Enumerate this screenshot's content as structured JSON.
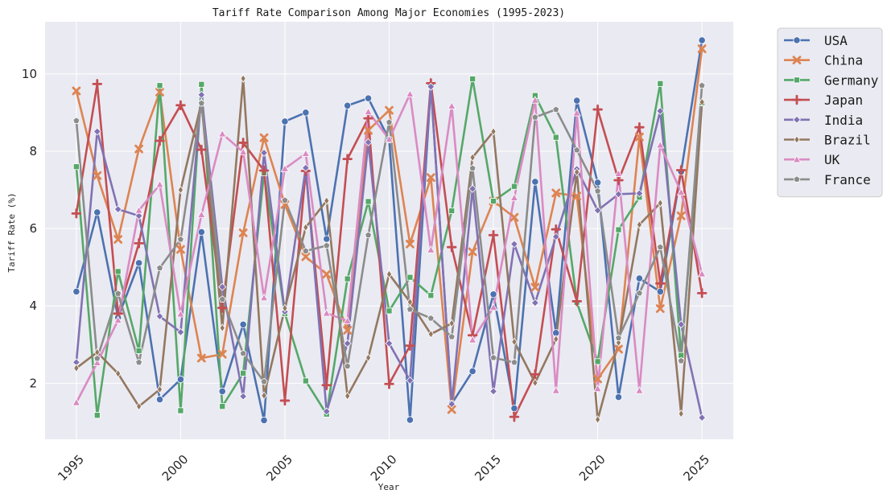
{
  "chart_data": {
    "type": "line",
    "title": "Tariff Rate Comparison Among Major Economies (1995-2023)",
    "xlabel": "Year",
    "ylabel": "Tariff Rate (%)",
    "xlim": [
      1993.5,
      2026.5
    ],
    "ylim": [
      0.55,
      11.35
    ],
    "x_ticks": [
      1995,
      2000,
      2005,
      2010,
      2015,
      2020,
      2025
    ],
    "y_ticks": [
      2,
      4,
      6,
      8,
      10
    ],
    "grid": true,
    "legend_position": "outside-top-right",
    "background": "#eaeaf2",
    "x": [
      1995,
      1996,
      1997,
      1998,
      1999,
      2000,
      2001,
      2002,
      2003,
      2004,
      2005,
      2006,
      2007,
      2008,
      2009,
      2010,
      2011,
      2012,
      2013,
      2014,
      2015,
      2016,
      2017,
      2018,
      2019,
      2020,
      2021,
      2022,
      2023,
      2024,
      2025
    ],
    "series": [
      {
        "name": "USA",
        "color": "#4c72b0",
        "marker": "circle",
        "values": [
          4.37,
          6.42,
          3.7,
          5.11,
          1.58,
          2.1,
          5.91,
          1.79,
          3.52,
          1.04,
          8.77,
          9.0,
          5.73,
          9.18,
          9.37,
          8.3,
          1.05,
          9.7,
          1.47,
          2.31,
          4.3,
          1.35,
          7.21,
          3.3,
          9.31,
          7.19,
          1.64,
          4.71,
          4.37,
          7.47,
          10.87
        ]
      },
      {
        "name": "China",
        "color": "#dd8452",
        "marker": "x",
        "values": [
          9.56,
          7.37,
          5.72,
          8.06,
          9.53,
          5.46,
          2.65,
          2.75,
          5.89,
          8.35,
          6.62,
          5.27,
          4.82,
          3.37,
          8.54,
          9.06,
          5.6,
          7.32,
          1.32,
          5.4,
          6.71,
          6.29,
          4.48,
          6.92,
          6.84,
          2.11,
          2.88,
          8.37,
          3.93,
          6.33,
          10.65
        ]
      },
      {
        "name": "Germany",
        "color": "#55a868",
        "marker": "square",
        "values": [
          7.6,
          1.17,
          4.89,
          2.84,
          9.7,
          1.29,
          9.73,
          1.4,
          2.26,
          7.44,
          3.8,
          2.06,
          1.2,
          4.7,
          6.7,
          3.87,
          4.74,
          4.27,
          6.46,
          9.87,
          6.71,
          7.09,
          9.44,
          8.36,
          4.09,
          2.56,
          5.97,
          6.81,
          9.75,
          2.72,
          9.25
        ]
      },
      {
        "name": "Japan",
        "color": "#c44e52",
        "marker": "plus",
        "values": [
          6.39,
          9.74,
          3.8,
          5.62,
          8.27,
          9.19,
          8.04,
          3.95,
          8.22,
          7.5,
          1.55,
          7.49,
          1.95,
          7.8,
          8.85,
          1.98,
          2.97,
          9.76,
          5.52,
          3.24,
          5.83,
          1.13,
          2.23,
          5.98,
          4.12,
          9.08,
          7.25,
          8.62,
          4.58,
          7.51,
          4.33
        ]
      },
      {
        "name": "India",
        "color": "#8172b3",
        "marker": "diamond",
        "values": [
          2.54,
          8.51,
          6.5,
          6.33,
          3.73,
          3.32,
          9.46,
          4.49,
          1.66,
          7.96,
          3.85,
          7.57,
          1.27,
          3.03,
          8.23,
          3.03,
          2.07,
          9.67,
          1.46,
          7.03,
          1.79,
          5.6,
          4.08,
          5.79,
          7.54,
          6.47,
          6.89,
          6.91,
          9.04,
          3.52,
          1.11
        ]
      },
      {
        "name": "Brazil",
        "color": "#937860",
        "marker": "thin-diamond",
        "values": [
          2.39,
          2.8,
          2.25,
          1.4,
          1.84,
          7.0,
          9.26,
          3.43,
          9.88,
          1.68,
          3.94,
          6.03,
          6.72,
          1.67,
          2.66,
          4.82,
          4.1,
          3.27,
          3.55,
          7.84,
          8.51,
          3.07,
          2.01,
          3.14,
          7.46,
          1.06,
          3.05,
          6.1,
          6.66,
          1.21,
          9.27
        ]
      },
      {
        "name": "UK",
        "color": "#da8bc3",
        "marker": "triangle",
        "values": [
          1.5,
          2.53,
          3.63,
          6.47,
          7.14,
          3.79,
          6.36,
          8.45,
          7.98,
          4.21,
          7.55,
          7.94,
          3.81,
          3.61,
          9.02,
          8.31,
          9.48,
          5.45,
          9.17,
          3.12,
          3.96,
          6.8,
          9.32,
          1.81,
          8.99,
          1.86,
          7.42,
          1.81,
          8.16,
          6.94,
          4.83
        ]
      },
      {
        "name": "France",
        "color": "#8c8c8c",
        "marker": "pentagon",
        "values": [
          8.79,
          2.64,
          4.32,
          2.54,
          4.98,
          5.72,
          9.24,
          4.17,
          2.77,
          2.04,
          6.73,
          5.42,
          5.56,
          2.44,
          5.83,
          8.75,
          3.91,
          3.68,
          3.2,
          7.56,
          2.66,
          2.54,
          8.88,
          9.08,
          8.03,
          6.97,
          3.17,
          4.33,
          5.52,
          2.58,
          9.7
        ]
      }
    ]
  }
}
